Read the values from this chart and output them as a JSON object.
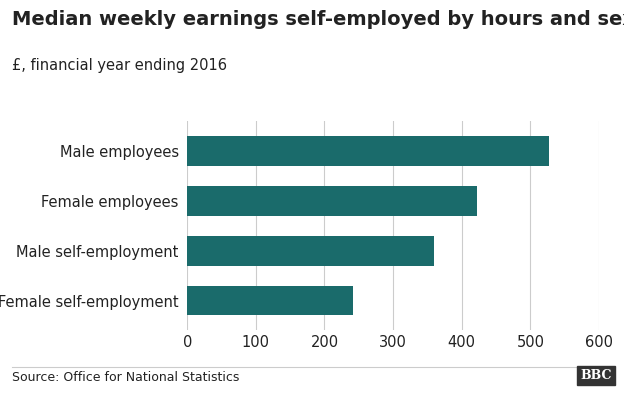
{
  "title": "Median weekly earnings self-employed by hours and sex",
  "subtitle": "£, financial year ending 2016",
  "categories": [
    "Male employees",
    "Female employees",
    "Male self-employment",
    "Female self-employment"
  ],
  "values": [
    527,
    422,
    360,
    241
  ],
  "bar_color": "#1a6b6b",
  "xlim": [
    0,
    600
  ],
  "xticks": [
    0,
    100,
    200,
    300,
    400,
    500,
    600
  ],
  "bar_height": 0.6,
  "source_text": "Source: Office for National Statistics",
  "bbc_text": "BBC",
  "background_color": "#ffffff",
  "text_color": "#222222",
  "grid_color": "#cccccc",
  "title_fontsize": 14,
  "subtitle_fontsize": 10.5,
  "label_fontsize": 10.5,
  "tick_fontsize": 10.5,
  "source_fontsize": 9
}
